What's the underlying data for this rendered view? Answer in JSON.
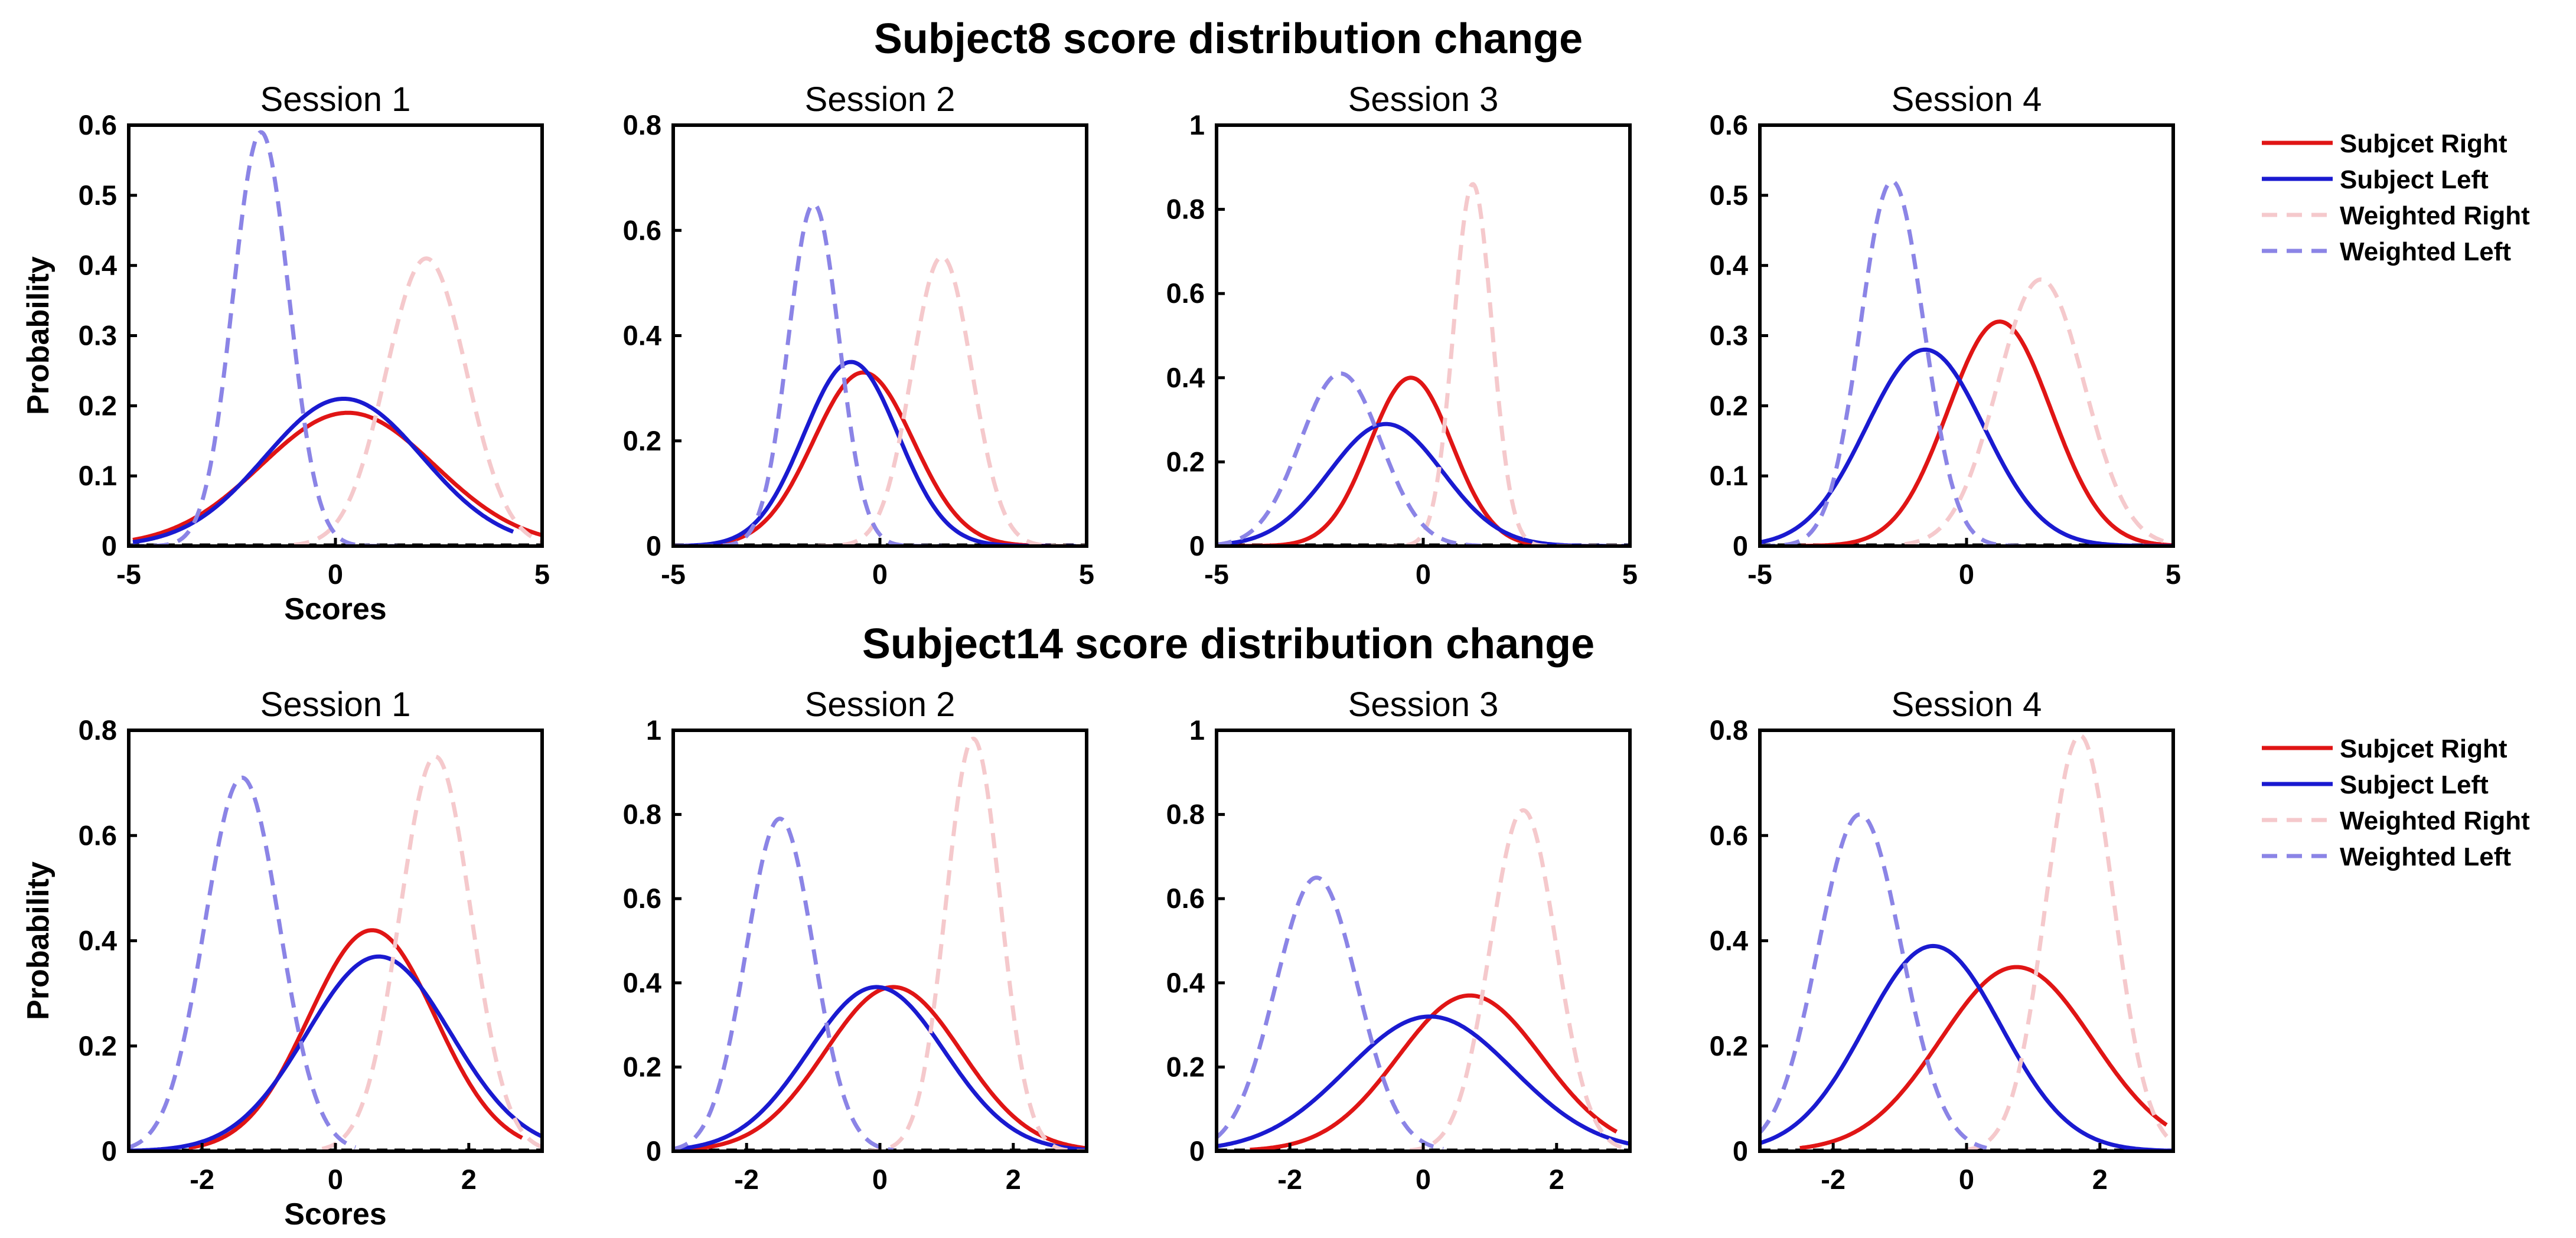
{
  "chart_data": [
    {
      "type": "line",
      "title": "Subject8 score distribution change",
      "xlabel": "Scores",
      "ylabel": "Probability",
      "legend": [
        "Subjcet Right",
        "Subject Left",
        "Weighted Right",
        "Weighted Left"
      ],
      "legend_position": "right",
      "panels": [
        {
          "title": "Session 1",
          "xlim": [
            -5,
            5
          ],
          "ylim": [
            0,
            0.6
          ],
          "xticks": [
            -5,
            0,
            5
          ],
          "yticks": [
            0,
            0.1,
            0.2,
            0.3,
            0.4,
            0.5,
            0.6
          ],
          "xtick_labels": [
            "-5",
            "0",
            "5"
          ],
          "ytick_labels": [
            "0",
            "0.1",
            "0.2",
            "0.3",
            "0.4",
            "0.5",
            "0.6"
          ],
          "series": [
            {
              "name": "Subjcet Right",
              "mean": 0.3,
              "peak": 0.19,
              "x_range": [
                -4.9,
                5.0
              ]
            },
            {
              "name": "Subject Left",
              "mean": 0.2,
              "peak": 0.21,
              "x_range": [
                -4.9,
                4.3
              ]
            },
            {
              "name": "Weighted Right",
              "mean": 2.2,
              "peak": 0.41,
              "x_range": [
                -1.0,
                5.0
              ]
            },
            {
              "name": "Weighted Left",
              "mean": -1.8,
              "peak": 0.59,
              "x_range": [
                -5.0,
                1.5
              ]
            }
          ]
        },
        {
          "title": "Session 2",
          "xlim": [
            -5,
            5
          ],
          "ylim": [
            0,
            0.8
          ],
          "xticks": [
            -5,
            0,
            5
          ],
          "yticks": [
            0,
            0.2,
            0.4,
            0.6,
            0.8
          ],
          "xtick_labels": [
            "-5",
            "0",
            "5"
          ],
          "ytick_labels": [
            "0",
            "0.2",
            "0.4",
            "0.6",
            "0.8"
          ],
          "series": [
            {
              "name": "Subjcet Right",
              "mean": -0.4,
              "peak": 0.33,
              "x_range": [
                -5.0,
                5.0
              ]
            },
            {
              "name": "Subject Left",
              "mean": -0.7,
              "peak": 0.35,
              "x_range": [
                -5.0,
                5.0
              ]
            },
            {
              "name": "Weighted Right",
              "mean": 1.5,
              "peak": 0.55,
              "x_range": [
                -1.5,
                5.0
              ]
            },
            {
              "name": "Weighted Left",
              "mean": -1.6,
              "peak": 0.65,
              "x_range": [
                -5.0,
                1.5
              ]
            }
          ]
        },
        {
          "title": "Session 3",
          "xlim": [
            -5,
            5
          ],
          "ylim": [
            0,
            1
          ],
          "xticks": [
            -5,
            0,
            5
          ],
          "yticks": [
            0,
            0.2,
            0.4,
            0.6,
            0.8,
            1
          ],
          "xtick_labels": [
            "-5",
            "0",
            "5"
          ],
          "ytick_labels": [
            "0",
            "0.2",
            "0.4",
            "0.6",
            "0.8",
            "1"
          ],
          "series": [
            {
              "name": "Subjcet Right",
              "mean": -0.3,
              "peak": 0.4,
              "x_range": [
                -5.0,
                5.0
              ]
            },
            {
              "name": "Subject Left",
              "mean": -0.9,
              "peak": 0.29,
              "x_range": [
                -5.0,
                5.0
              ]
            },
            {
              "name": "Weighted Right",
              "mean": 1.2,
              "peak": 0.86,
              "x_range": [
                -1.0,
                5.0
              ]
            },
            {
              "name": "Weighted Left",
              "mean": -2.0,
              "peak": 0.41,
              "x_range": [
                -5.0,
                1.5
              ]
            }
          ]
        },
        {
          "title": "Session 4",
          "xlim": [
            -5,
            5
          ],
          "ylim": [
            0,
            0.6
          ],
          "xticks": [
            -5,
            0,
            5
          ],
          "yticks": [
            0,
            0.1,
            0.2,
            0.3,
            0.4,
            0.5,
            0.6
          ],
          "xtick_labels": [
            "-5",
            "0",
            "5"
          ],
          "ytick_labels": [
            "0",
            "0.1",
            "0.2",
            "0.3",
            "0.4",
            "0.5",
            "0.6"
          ],
          "series": [
            {
              "name": "Subjcet Right",
              "mean": 0.8,
              "peak": 0.32,
              "x_range": [
                -4.0,
                5.0
              ]
            },
            {
              "name": "Subject Left",
              "mean": -1.0,
              "peak": 0.28,
              "x_range": [
                -5.0,
                5.0
              ]
            },
            {
              "name": "Weighted Right",
              "mean": 1.8,
              "peak": 0.38,
              "x_range": [
                -1.5,
                5.0
              ]
            },
            {
              "name": "Weighted Left",
              "mean": -1.8,
              "peak": 0.52,
              "x_range": [
                -5.0,
                1.5
              ]
            }
          ]
        }
      ]
    },
    {
      "type": "line",
      "title": "Subject14 score distribution change",
      "xlabel": "Scores",
      "ylabel": "Probability",
      "legend": [
        "Subjcet Right",
        "Subject Left",
        "Weighted Right",
        "Weighted Left"
      ],
      "legend_position": "right",
      "panels": [
        {
          "title": "Session 1",
          "xlim": [
            -3.1,
            3.1
          ],
          "ylim": [
            0,
            0.8
          ],
          "xticks": [
            -2,
            0,
            2
          ],
          "yticks": [
            0,
            0.2,
            0.4,
            0.6,
            0.8
          ],
          "xtick_labels": [
            "-2",
            "0",
            "2"
          ],
          "ytick_labels": [
            "0",
            "0.2",
            "0.4",
            "0.6",
            "0.8"
          ],
          "series": [
            {
              "name": "Subjcet Right",
              "mean": 0.55,
              "peak": 0.42,
              "x_range": [
                -2.2,
                2.8
              ]
            },
            {
              "name": "Subject Left",
              "mean": 0.65,
              "peak": 0.37,
              "x_range": [
                -3.1,
                3.1
              ]
            },
            {
              "name": "Weighted Right",
              "mean": 1.5,
              "peak": 0.75,
              "x_range": [
                -0.2,
                3.1
              ]
            },
            {
              "name": "Weighted Left",
              "mean": -1.4,
              "peak": 0.71,
              "x_range": [
                -3.1,
                0.3
              ]
            }
          ]
        },
        {
          "title": "Session 2",
          "xlim": [
            -3.1,
            3.1
          ],
          "ylim": [
            0,
            1
          ],
          "xticks": [
            -2,
            0,
            2
          ],
          "yticks": [
            0,
            0.2,
            0.4,
            0.6,
            0.8,
            1
          ],
          "xtick_labels": [
            "-2",
            "0",
            "2"
          ],
          "ytick_labels": [
            "0",
            "0.2",
            "0.4",
            "0.6",
            "0.8",
            "1"
          ],
          "series": [
            {
              "name": "Subjcet Right",
              "mean": 0.2,
              "peak": 0.39,
              "x_range": [
                -3.1,
                3.1
              ]
            },
            {
              "name": "Subject Left",
              "mean": -0.05,
              "peak": 0.39,
              "x_range": [
                -3.1,
                3.1
              ]
            },
            {
              "name": "Weighted Right",
              "mean": 1.4,
              "peak": 0.98,
              "x_range": [
                -0.2,
                3.1
              ]
            },
            {
              "name": "Weighted Left",
              "mean": -1.5,
              "peak": 0.79,
              "x_range": [
                -3.1,
                0.2
              ]
            }
          ]
        },
        {
          "title": "Session 3",
          "xlim": [
            -3.1,
            3.1
          ],
          "ylim": [
            0,
            1
          ],
          "xticks": [
            -2,
            0,
            2
          ],
          "yticks": [
            0,
            0.2,
            0.4,
            0.6,
            0.8,
            1
          ],
          "xtick_labels": [
            "-2",
            "0",
            "2"
          ],
          "ytick_labels": [
            "0",
            "0.2",
            "0.4",
            "0.6",
            "0.8",
            "1"
          ],
          "series": [
            {
              "name": "Subjcet Right",
              "mean": 0.7,
              "peak": 0.37,
              "x_range": [
                -2.6,
                2.9
              ]
            },
            {
              "name": "Subject Left",
              "mean": 0.1,
              "peak": 0.32,
              "x_range": [
                -3.1,
                3.1
              ]
            },
            {
              "name": "Weighted Right",
              "mean": 1.5,
              "peak": 0.81,
              "x_range": [
                -0.2,
                3.1
              ]
            },
            {
              "name": "Weighted Left",
              "mean": -1.6,
              "peak": 0.65,
              "x_range": [
                -3.1,
                0.3
              ]
            }
          ]
        },
        {
          "title": "Session 4",
          "xlim": [
            -3.1,
            3.1
          ],
          "ylim": [
            0,
            0.8
          ],
          "xticks": [
            -2,
            0,
            2
          ],
          "yticks": [
            0,
            0.2,
            0.4,
            0.6,
            0.8
          ],
          "xtick_labels": [
            "-2",
            "0",
            "2"
          ],
          "ytick_labels": [
            "0",
            "0.2",
            "0.4",
            "0.6",
            "0.8"
          ],
          "series": [
            {
              "name": "Subjcet Right",
              "mean": 0.75,
              "peak": 0.35,
              "x_range": [
                -2.5,
                3.0
              ]
            },
            {
              "name": "Subject Left",
              "mean": -0.5,
              "peak": 0.39,
              "x_range": [
                -3.1,
                3.1
              ]
            },
            {
              "name": "Weighted Right",
              "mean": 1.7,
              "peak": 0.79,
              "x_range": [
                0.0,
                3.1
              ]
            },
            {
              "name": "Weighted Left",
              "mean": -1.6,
              "peak": 0.64,
              "x_range": [
                -3.1,
                0.3
              ]
            }
          ]
        }
      ]
    }
  ],
  "styles": {
    "Subjcet Right": {
      "color": "#e01515",
      "dashed": false,
      "opacity": 1.0
    },
    "Subject Left": {
      "color": "#1a1ad0",
      "dashed": false,
      "opacity": 1.0
    },
    "Weighted Right": {
      "color": "#f5c9cc",
      "dashed": true,
      "opacity": 1.0
    },
    "Weighted Left": {
      "color": "#8b84e6",
      "dashed": true,
      "opacity": 1.0
    }
  },
  "baseline_color": "#000000"
}
